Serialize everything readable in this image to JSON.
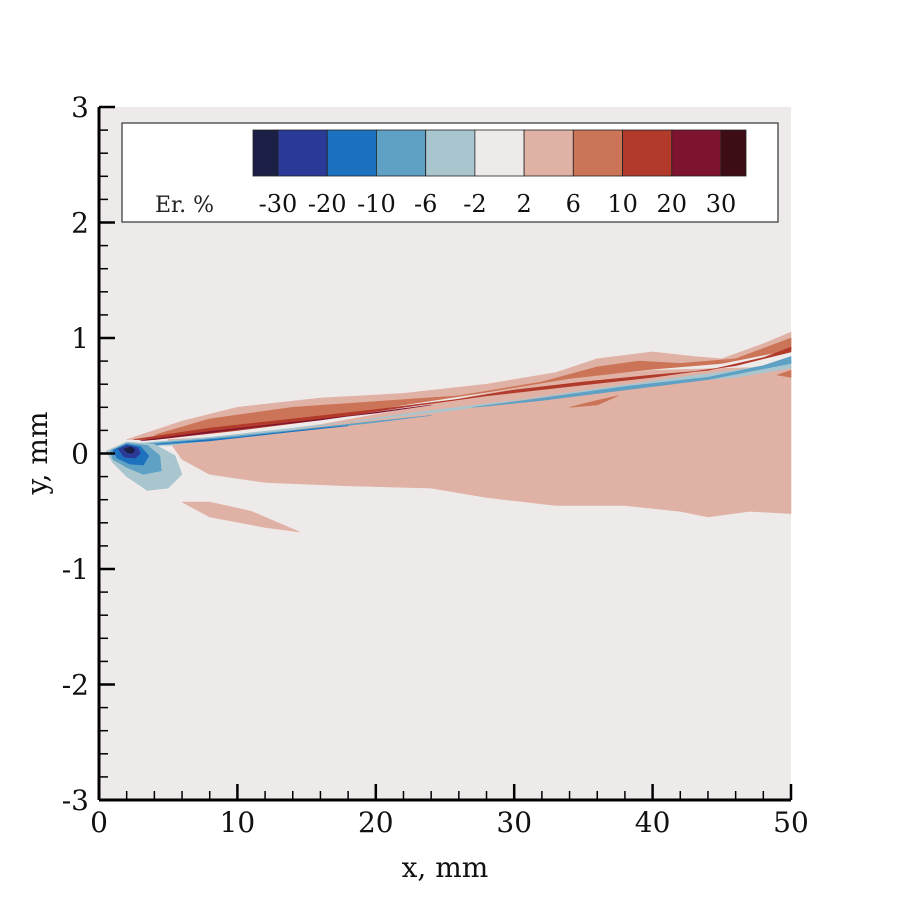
{
  "chart_data": {
    "type": "heatmap",
    "title": "",
    "xlabel": "x, mm",
    "ylabel": "y, mm",
    "xlim": [
      0,
      50
    ],
    "ylim": [
      -3,
      3
    ],
    "x_ticks": [
      0,
      10,
      20,
      30,
      40,
      50
    ],
    "y_ticks": [
      -3,
      -2,
      -1,
      0,
      1,
      2,
      3
    ],
    "x_tick_labels": [
      "0",
      "10",
      "20",
      "30",
      "40",
      "50"
    ],
    "y_tick_labels": [
      "-3",
      "-2",
      "-1",
      "0",
      "1",
      "2",
      "3"
    ],
    "background_color": "#efeaea",
    "legend": {
      "title": "Er. %",
      "placement": "top",
      "levels": [
        "-30",
        "-20",
        "-10",
        "-6",
        "-2",
        "2",
        "6",
        "10",
        "20",
        "30"
      ],
      "colors": [
        "#1b1f46",
        "#2b3a96",
        "#1c72bf",
        "#5ea1c4",
        "#a9c6cf",
        "#efeaea",
        "#e0b2a5",
        "#cc7457",
        "#b13a2b",
        "#7e1330",
        "#3d0c14"
      ]
    },
    "regions": [
      {
        "name": "positive-lobe-lower",
        "level": "2",
        "color": "#e0b2a5",
        "points": [
          [
            5,
            0.12
          ],
          [
            10,
            0.15
          ],
          [
            16,
            0.25
          ],
          [
            22,
            0.38
          ],
          [
            28,
            0.52
          ],
          [
            34,
            0.65
          ],
          [
            40,
            0.72
          ],
          [
            46,
            0.74
          ],
          [
            50,
            0.75
          ],
          [
            50,
            -0.52
          ],
          [
            47,
            -0.5
          ],
          [
            44,
            -0.55
          ],
          [
            42,
            -0.5
          ],
          [
            38,
            -0.45
          ],
          [
            33,
            -0.45
          ],
          [
            28,
            -0.38
          ],
          [
            24,
            -0.3
          ],
          [
            18,
            -0.28
          ],
          [
            12,
            -0.25
          ],
          [
            8,
            -0.18
          ],
          [
            6,
            -0.05
          ]
        ]
      },
      {
        "name": "positive-patch-lower-left",
        "level": "2",
        "color": "#e0b2a5",
        "points": [
          [
            6,
            -0.42
          ],
          [
            8,
            -0.42
          ],
          [
            11,
            -0.5
          ],
          [
            14.5,
            -0.68
          ],
          [
            12,
            -0.64
          ],
          [
            8,
            -0.55
          ]
        ]
      },
      {
        "name": "positive-upper-band",
        "level": "2",
        "color": "#e0b2a5",
        "points": [
          [
            2,
            0.12
          ],
          [
            6,
            0.28
          ],
          [
            10,
            0.4
          ],
          [
            16,
            0.48
          ],
          [
            22,
            0.52
          ],
          [
            28,
            0.6
          ],
          [
            33,
            0.7
          ],
          [
            36,
            0.82
          ],
          [
            40,
            0.88
          ],
          [
            43,
            0.84
          ],
          [
            45,
            0.82
          ],
          [
            48,
            0.95
          ],
          [
            50,
            1.05
          ],
          [
            50,
            0.92
          ],
          [
            46,
            0.82
          ],
          [
            40,
            0.74
          ],
          [
            34,
            0.66
          ],
          [
            28,
            0.54
          ],
          [
            22,
            0.43
          ],
          [
            16,
            0.31
          ],
          [
            10,
            0.22
          ],
          [
            5,
            0.13
          ]
        ]
      },
      {
        "name": "positive-band-6",
        "level": "6",
        "color": "#cc7457",
        "points": [
          [
            4,
            0.16
          ],
          [
            8,
            0.3
          ],
          [
            14,
            0.4
          ],
          [
            20,
            0.45
          ],
          [
            26,
            0.5
          ],
          [
            32,
            0.62
          ],
          [
            36,
            0.75
          ],
          [
            39,
            0.8
          ],
          [
            42,
            0.78
          ],
          [
            46,
            0.82
          ],
          [
            50,
            1.0
          ],
          [
            50,
            0.9
          ],
          [
            45,
            0.78
          ],
          [
            40,
            0.73
          ],
          [
            34,
            0.65
          ],
          [
            28,
            0.53
          ],
          [
            22,
            0.42
          ],
          [
            16,
            0.3
          ],
          [
            10,
            0.21
          ],
          [
            5,
            0.14
          ]
        ]
      },
      {
        "name": "positive-spot-31",
        "level": "6",
        "color": "#cc7457",
        "points": [
          [
            34,
            0.4
          ],
          [
            36,
            0.46
          ],
          [
            37.5,
            0.5
          ],
          [
            36,
            0.42
          ]
        ]
      },
      {
        "name": "positive-spot-50",
        "level": "6",
        "color": "#cc7457",
        "points": [
          [
            49,
            0.68
          ],
          [
            50,
            0.72
          ],
          [
            50,
            0.66
          ]
        ]
      },
      {
        "name": "positive-ridge-10",
        "level": "10",
        "color": "#b13a2b",
        "points": [
          [
            2.5,
            0.12
          ],
          [
            8,
            0.22
          ],
          [
            14,
            0.3
          ],
          [
            20,
            0.38
          ],
          [
            26,
            0.47
          ],
          [
            30,
            0.55
          ],
          [
            35,
            0.62
          ],
          [
            40,
            0.68
          ],
          [
            44,
            0.72
          ],
          [
            48,
            0.83
          ],
          [
            50,
            0.92
          ],
          [
            50,
            0.88
          ],
          [
            46,
            0.76
          ],
          [
            40,
            0.66
          ],
          [
            34,
            0.58
          ],
          [
            28,
            0.5
          ],
          [
            22,
            0.4
          ],
          [
            16,
            0.29
          ],
          [
            10,
            0.2
          ],
          [
            4,
            0.12
          ]
        ]
      },
      {
        "name": "positive-ridge-20",
        "level": "20",
        "color": "#7e1330",
        "points": [
          [
            3,
            0.11
          ],
          [
            8,
            0.19
          ],
          [
            14,
            0.27
          ],
          [
            20,
            0.35
          ],
          [
            24,
            0.42
          ],
          [
            22,
            0.39
          ],
          [
            16,
            0.29
          ],
          [
            10,
            0.21
          ],
          [
            4,
            0.12
          ]
        ]
      },
      {
        "name": "negative-band-2",
        "level": "-2",
        "color": "#a9c6cf",
        "points": [
          [
            2,
            0.08
          ],
          [
            8,
            0.14
          ],
          [
            14,
            0.22
          ],
          [
            20,
            0.3
          ],
          [
            26,
            0.38
          ],
          [
            30,
            0.46
          ],
          [
            36,
            0.56
          ],
          [
            42,
            0.66
          ],
          [
            46,
            0.72
          ],
          [
            50,
            0.8
          ],
          [
            50,
            0.74
          ],
          [
            46,
            0.66
          ],
          [
            40,
            0.6
          ],
          [
            34,
            0.52
          ],
          [
            28,
            0.43
          ],
          [
            22,
            0.34
          ],
          [
            16,
            0.24
          ],
          [
            10,
            0.14
          ],
          [
            5,
            0.07
          ]
        ]
      },
      {
        "name": "negative-band-6",
        "level": "-6",
        "color": "#5ea1c4",
        "points": [
          [
            3,
            0.08
          ],
          [
            8,
            0.13
          ],
          [
            14,
            0.2
          ],
          [
            20,
            0.28
          ],
          [
            24,
            0.33
          ],
          [
            20,
            0.27
          ],
          [
            14,
            0.19
          ],
          [
            8,
            0.11
          ],
          [
            4,
            0.07
          ]
        ]
      },
      {
        "name": "negative-band-6b",
        "level": "-6",
        "color": "#5ea1c4",
        "points": [
          [
            27,
            0.4
          ],
          [
            32,
            0.48
          ],
          [
            38,
            0.58
          ],
          [
            44,
            0.66
          ],
          [
            48,
            0.76
          ],
          [
            50,
            0.84
          ],
          [
            50,
            0.78
          ],
          [
            44,
            0.64
          ],
          [
            38,
            0.55
          ],
          [
            32,
            0.46
          ],
          [
            28,
            0.41
          ]
        ]
      },
      {
        "name": "negative-band-10",
        "level": "-10",
        "color": "#1c72bf",
        "points": [
          [
            4,
            0.08
          ],
          [
            10,
            0.14
          ],
          [
            16,
            0.22
          ],
          [
            18,
            0.24
          ],
          [
            14,
            0.19
          ],
          [
            8,
            0.11
          ]
        ]
      },
      {
        "name": "negative-spot-2",
        "level": "-2",
        "color": "#a9c6cf",
        "points": [
          [
            0.5,
            0.02
          ],
          [
            2,
            0.1
          ],
          [
            4,
            0.08
          ],
          [
            5.5,
            -0.02
          ],
          [
            6,
            -0.18
          ],
          [
            5,
            -0.3
          ],
          [
            3.5,
            -0.32
          ],
          [
            2,
            -0.2
          ],
          [
            1,
            -0.08
          ]
        ]
      },
      {
        "name": "negative-spot-6",
        "level": "-6",
        "color": "#5ea1c4",
        "points": [
          [
            0.8,
            0.02
          ],
          [
            2,
            0.09
          ],
          [
            3.5,
            0.07
          ],
          [
            4.4,
            -0.02
          ],
          [
            4.5,
            -0.15
          ],
          [
            3.2,
            -0.18
          ],
          [
            2,
            -0.12
          ],
          [
            1,
            -0.05
          ]
        ]
      },
      {
        "name": "negative-spot-10",
        "level": "-10",
        "color": "#1c72bf",
        "points": [
          [
            1,
            0.03
          ],
          [
            2,
            0.08
          ],
          [
            3,
            0.06
          ],
          [
            3.6,
            -0.02
          ],
          [
            3.2,
            -0.1
          ],
          [
            2.2,
            -0.09
          ],
          [
            1.3,
            -0.04
          ]
        ]
      },
      {
        "name": "negative-spot-20",
        "level": "-20",
        "color": "#2b3a96",
        "points": [
          [
            1.4,
            0.04
          ],
          [
            2,
            0.07
          ],
          [
            2.8,
            0.05
          ],
          [
            3,
            0
          ],
          [
            2.6,
            -0.04
          ],
          [
            1.8,
            -0.03
          ]
        ]
      },
      {
        "name": "negative-spot-30",
        "level": "-30",
        "color": "#1b1f46",
        "points": [
          [
            1.8,
            0.04
          ],
          [
            2.3,
            0.06
          ],
          [
            2.6,
            0.03
          ],
          [
            2.4,
            0
          ],
          [
            2,
            0.01
          ]
        ]
      }
    ]
  }
}
